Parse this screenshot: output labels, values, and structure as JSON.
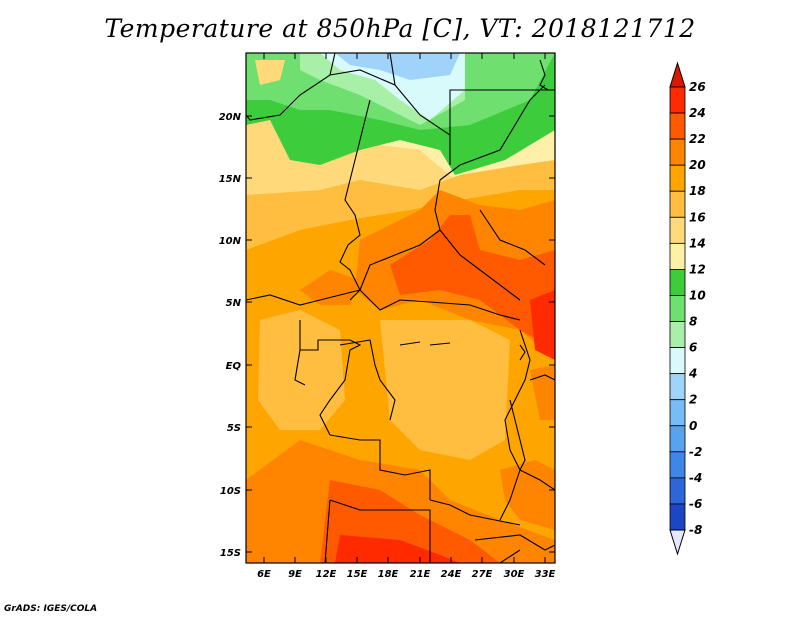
{
  "title": "Temperature at 850hPa [C], VT: 2018121712",
  "credit": "GrADS: IGES/COLA",
  "lat_ticks": [
    "20N",
    "15N",
    "10N",
    "5N",
    "EQ",
    "5S",
    "10S",
    "15S"
  ],
  "lon_ticks": [
    "6E",
    "9E",
    "12E",
    "15E",
    "18E",
    "21E",
    "24E",
    "27E",
    "30E",
    "33E"
  ],
  "colorbar": {
    "labels": [
      "26",
      "24",
      "22",
      "20",
      "18",
      "16",
      "14",
      "12",
      "10",
      "8",
      "6",
      "4",
      "2",
      "0",
      "-2",
      "-4",
      "-6",
      "-8"
    ],
    "colors_top_to_bottom": [
      "#ff2a00",
      "#ff5a00",
      "#ff8500",
      "#ffa500",
      "#ffbe40",
      "#ffd97a",
      "#fff0a8",
      "#3ccc3c",
      "#6fe06f",
      "#a8f0a8",
      "#d8fafa",
      "#9fd3fa",
      "#78bcf5",
      "#57a3ef",
      "#3f86e6",
      "#2d66d9",
      "#1d46c4",
      "#0e2aa8",
      "#0a1a80"
    ],
    "overflow_top_color": "#d81a00",
    "overflow_bottom_color": "#e6e6ff"
  }
}
